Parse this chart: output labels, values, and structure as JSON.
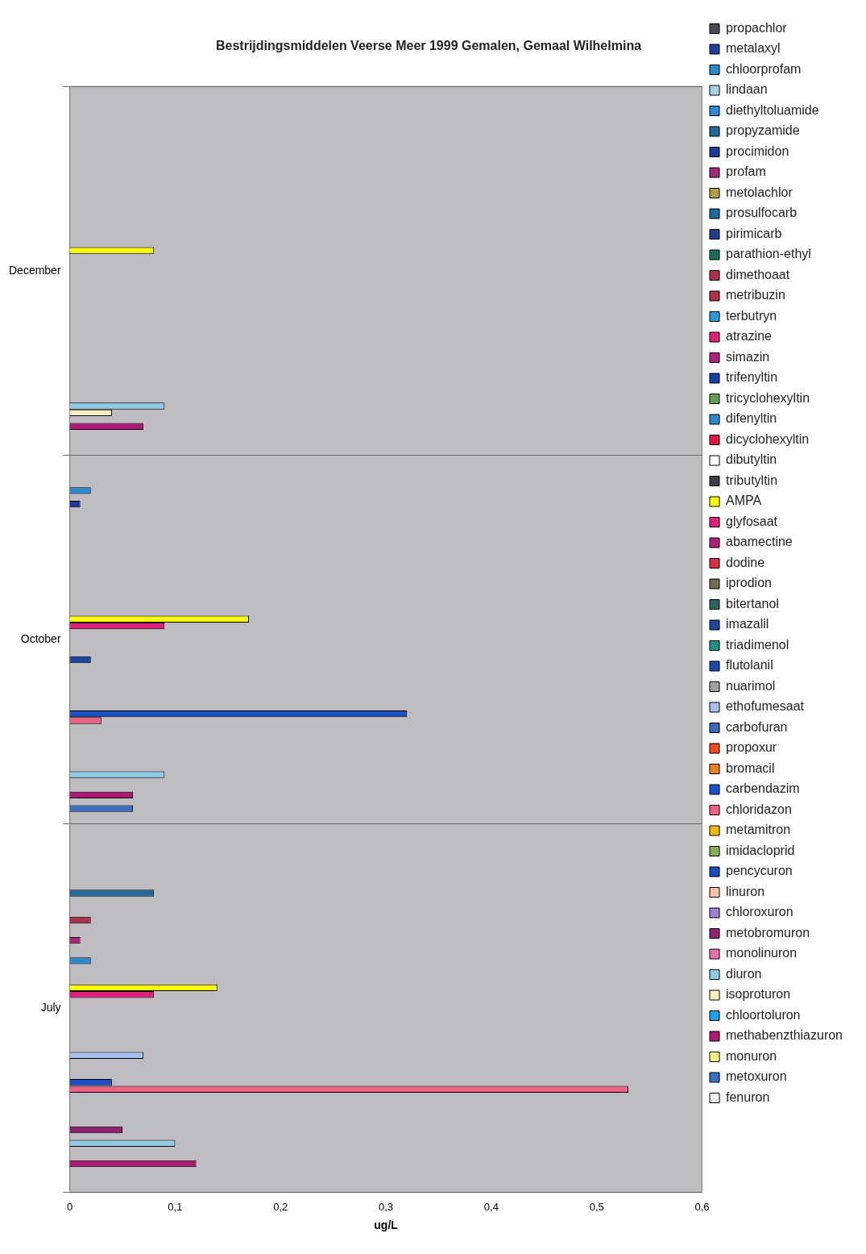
{
  "chart_data": {
    "type": "bar",
    "orientation": "horizontal",
    "title": "Bestrijdingsmiddelen Veerse Meer 1999 Gemalen, Gemaal Wilhelmina",
    "xlabel": "ug/L",
    "categories": [
      "December",
      "October",
      "July"
    ],
    "xlim": [
      0,
      0.6
    ],
    "xticks": [
      0,
      {
        "value": 0.1,
        "label": "0,1"
      },
      {
        "value": 0.2,
        "label": "0,2"
      },
      {
        "value": 0.3,
        "label": "0,3"
      },
      {
        "value": 0.4,
        "label": "0,4"
      },
      {
        "value": 0.5,
        "label": "0,5"
      },
      {
        "value": 0.6,
        "label": "0,6"
      }
    ],
    "grid": "y",
    "legend": "right",
    "series": [
      {
        "name": "propachlor",
        "color": "#4a4a55",
        "values": [
          null,
          null,
          null
        ]
      },
      {
        "name": "metalaxyl",
        "color": "#1f3f9a",
        "values": [
          null,
          null,
          null
        ]
      },
      {
        "name": "chloorprofam",
        "color": "#2a8ac8",
        "values": [
          null,
          null,
          null
        ]
      },
      {
        "name": "lindaan",
        "color": "#a8d4ec",
        "values": [
          null,
          null,
          null
        ]
      },
      {
        "name": "diethyltoluamide",
        "color": "#2a8ad8",
        "values": [
          null,
          0.02,
          null
        ]
      },
      {
        "name": "propyzamide",
        "color": "#1f6a9a",
        "values": [
          null,
          null,
          null
        ]
      },
      {
        "name": "procimidon",
        "color": "#1a3aa0",
        "values": [
          null,
          0.01,
          null
        ]
      },
      {
        "name": "profam",
        "color": "#a02a80",
        "values": [
          null,
          null,
          null
        ]
      },
      {
        "name": "metolachlor",
        "color": "#b0a040",
        "values": [
          null,
          null,
          null
        ]
      },
      {
        "name": "prosulfocarb",
        "color": "#1f6a9a",
        "values": [
          null,
          null,
          0.08
        ]
      },
      {
        "name": "pirimicarb",
        "color": "#1f3f8a",
        "values": [
          null,
          null,
          null
        ]
      },
      {
        "name": "parathion-ethyl",
        "color": "#1a7060",
        "values": [
          null,
          null,
          null
        ]
      },
      {
        "name": "dimethoaat",
        "color": "#b03048",
        "values": [
          null,
          null,
          null
        ]
      },
      {
        "name": "metribuzin",
        "color": "#b03048",
        "values": [
          null,
          null,
          0.02
        ]
      },
      {
        "name": "terbutryn",
        "color": "#2a98d8",
        "values": [
          null,
          null,
          null
        ]
      },
      {
        "name": "atrazine",
        "color": "#e0207a",
        "values": [
          null,
          null,
          null
        ]
      },
      {
        "name": "simazin",
        "color": "#b02080",
        "values": [
          null,
          null,
          0.01
        ]
      },
      {
        "name": "trifenyltin",
        "color": "#1a40a8",
        "values": [
          null,
          null,
          null
        ]
      },
      {
        "name": "tricyclohexyltin",
        "color": "#60a050",
        "values": [
          null,
          null,
          null
        ]
      },
      {
        "name": "difenyltin",
        "color": "#2a8ad0",
        "values": [
          null,
          null,
          0.02
        ]
      },
      {
        "name": "dicyclohexyltin",
        "color": "#e01840",
        "values": [
          null,
          null,
          null
        ]
      },
      {
        "name": "dibutyltin",
        "color": "#ffffff",
        "values": [
          null,
          null,
          null
        ]
      },
      {
        "name": "tributyltin",
        "color": "#3a4048",
        "values": [
          null,
          null,
          null
        ]
      },
      {
        "name": "AMPA",
        "color": "#ffff00",
        "values": [
          0.08,
          0.17,
          0.14
        ]
      },
      {
        "name": "glyfosaat",
        "color": "#e0207a",
        "values": [
          null,
          0.09,
          0.08
        ]
      },
      {
        "name": "abamectine",
        "color": "#b02078",
        "values": [
          null,
          null,
          null
        ]
      },
      {
        "name": "dodine",
        "color": "#d83040",
        "values": [
          null,
          null,
          null
        ]
      },
      {
        "name": "iprodion",
        "color": "#707050",
        "values": [
          null,
          null,
          null
        ]
      },
      {
        "name": "bitertanol",
        "color": "#306060",
        "values": [
          null,
          null,
          null
        ]
      },
      {
        "name": "imazalil",
        "color": "#1a4aa0",
        "values": [
          null,
          0.02,
          null
        ]
      },
      {
        "name": "triadimenol",
        "color": "#20908a",
        "values": [
          null,
          null,
          null
        ]
      },
      {
        "name": "flutolanil",
        "color": "#1a4aa8",
        "values": [
          null,
          null,
          null
        ]
      },
      {
        "name": "nuarimol",
        "color": "#a0a0a8",
        "values": [
          null,
          null,
          null
        ]
      },
      {
        "name": "ethofumesaat",
        "color": "#a8c0f0",
        "values": [
          null,
          null,
          0.07
        ]
      },
      {
        "name": "carbofuran",
        "color": "#3a6ab8",
        "values": [
          null,
          null,
          null
        ]
      },
      {
        "name": "propoxur",
        "color": "#f04a20",
        "values": [
          null,
          null,
          null
        ]
      },
      {
        "name": "bromacil",
        "color": "#f08020",
        "values": [
          null,
          null,
          null
        ]
      },
      {
        "name": "carbendazim",
        "color": "#1a50c8",
        "values": [
          null,
          0.32,
          0.04
        ]
      },
      {
        "name": "chloridazon",
        "color": "#f06080",
        "values": [
          null,
          0.03,
          0.53
        ]
      },
      {
        "name": "metamitron",
        "color": "#f0b800",
        "values": [
          null,
          null,
          null
        ]
      },
      {
        "name": "imidacloprid",
        "color": "#80b050",
        "values": [
          null,
          null,
          null
        ]
      },
      {
        "name": "pencycuron",
        "color": "#1a4ac0",
        "values": [
          null,
          null,
          null
        ]
      },
      {
        "name": "linuron",
        "color": "#f8c0a8",
        "values": [
          null,
          null,
          null
        ]
      },
      {
        "name": "chloroxuron",
        "color": "#a080d8",
        "values": [
          null,
          null,
          null
        ]
      },
      {
        "name": "metobromuron",
        "color": "#902070",
        "values": [
          null,
          null,
          0.05
        ]
      },
      {
        "name": "monolinuron",
        "color": "#f070b0",
        "values": [
          null,
          null,
          null
        ]
      },
      {
        "name": "diuron",
        "color": "#90cce8",
        "values": [
          0.09,
          0.09,
          0.1
        ]
      },
      {
        "name": "isoproturon",
        "color": "#fff0c0",
        "values": [
          0.04,
          null,
          null
        ]
      },
      {
        "name": "chloortoluron",
        "color": "#20a0e8",
        "values": [
          null,
          null,
          null
        ]
      },
      {
        "name": "methabenzthiazuron",
        "color": "#b01878",
        "values": [
          0.07,
          0.06,
          0.12
        ]
      },
      {
        "name": "monuron",
        "color": "#fff080",
        "values": [
          null,
          null,
          null
        ]
      },
      {
        "name": "metoxuron",
        "color": "#3a70c8",
        "values": [
          null,
          0.06,
          null
        ]
      },
      {
        "name": "fenuron",
        "color": "#f0f0f0",
        "values": [
          null,
          null,
          null
        ]
      }
    ]
  }
}
